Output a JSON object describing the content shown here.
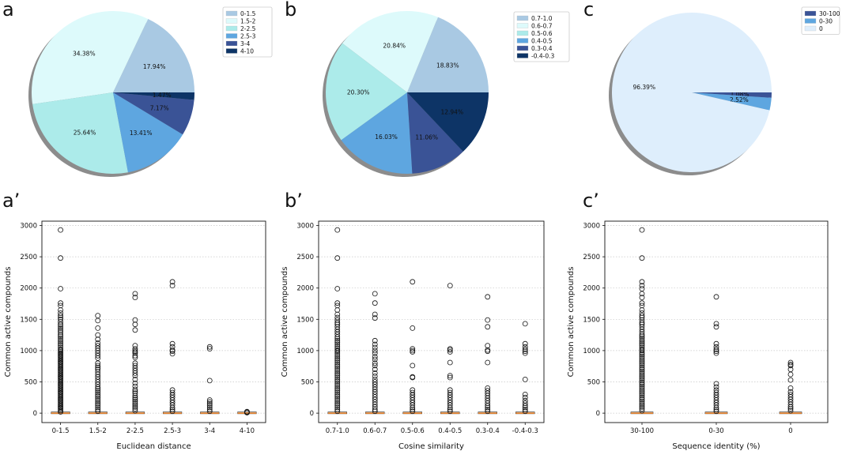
{
  "chart_data": [
    {
      "panel_label": "a",
      "type": "pie",
      "labels": [
        "0-1.5",
        "1.5-2",
        "2-2.5",
        "2.5-3",
        "3-4",
        "4-10"
      ],
      "values": [
        17.94,
        34.38,
        25.64,
        13.41,
        7.17,
        1.47
      ],
      "value_labels": [
        "17.94%",
        "34.38%",
        "25.64%",
        "13.41%",
        "7.17%",
        "1.47%"
      ],
      "colors": [
        "#a9c9e3",
        "#ddfafb",
        "#acebea",
        "#5ea6e0",
        "#3a5396",
        "#0d3466"
      ],
      "start_angle": 0,
      "direction": "counterclockwise",
      "shadow": true,
      "legend_position": "right"
    },
    {
      "panel_label": "b",
      "type": "pie",
      "labels": [
        "0.7-1.0",
        "0.6-0.7",
        "0.5-0.6",
        "0.4-0.5",
        "0.3-0.4",
        "-0.4-0.3"
      ],
      "values": [
        18.83,
        20.84,
        20.3,
        16.03,
        11.06,
        12.94
      ],
      "value_labels": [
        "18.83%",
        "20.84%",
        "20.30%",
        "16.03%",
        "11.06%",
        "12.94%"
      ],
      "colors": [
        "#a9c9e3",
        "#ddfafb",
        "#acebea",
        "#5ea6e0",
        "#3a5396",
        "#0d3466"
      ],
      "start_angle": 0,
      "direction": "counterclockwise",
      "shadow": true,
      "legend_position": "right"
    },
    {
      "panel_label": "c",
      "type": "pie",
      "labels": [
        "30-100",
        "0-30",
        "0"
      ],
      "legend_labels": [
        "30-100",
        "0-30",
        "0"
      ],
      "values": [
        1.08,
        2.52,
        96.39
      ],
      "value_labels": [
        "1.08%",
        "2.52%",
        "96.39%"
      ],
      "colors": [
        "#3a5396",
        "#5ea6e0",
        "#deeefc"
      ],
      "start_angle": 0,
      "direction": "clockwise",
      "shadow": true,
      "legend_position": "top-right"
    },
    {
      "panel_label": "a’",
      "type": "boxplot",
      "xlabel": "Euclidean distance",
      "ylabel": "Common active compounds",
      "categories": [
        "0-1.5",
        "1.5-2",
        "2-2.5",
        "2.5-3",
        "3-4",
        "4-10"
      ],
      "yticks": [
        0,
        500,
        1000,
        1500,
        2000,
        2500,
        3000
      ],
      "ylim": [
        -150,
        3070
      ],
      "grid": "y-dotted",
      "box_color": "#f28a30",
      "outliers": [
        [
          2930,
          2480,
          1990,
          1760,
          1720,
          1650,
          1600,
          1560,
          1530,
          1500,
          1460,
          1420,
          1390,
          1360,
          1330,
          1300,
          1260,
          1230,
          1200,
          1170,
          1140,
          1110,
          1080,
          1050,
          1020,
          1000,
          980,
          960,
          940,
          920,
          900,
          880,
          860,
          840,
          820,
          800,
          780,
          760,
          740,
          720,
          700,
          680,
          660,
          640,
          620,
          600,
          580,
          560,
          540,
          520,
          500,
          480,
          460,
          440,
          420,
          400,
          380,
          360,
          340,
          320,
          300,
          280,
          260,
          240,
          220,
          200,
          180,
          160,
          140,
          120,
          100,
          80,
          60,
          40,
          20
        ],
        [
          1560,
          1480,
          1360,
          1250,
          1180,
          1120,
          1080,
          1040,
          1000,
          960,
          920,
          880,
          800,
          760,
          730,
          700,
          660,
          620,
          580,
          540,
          500,
          460,
          420,
          390,
          360,
          330,
          300,
          270,
          240,
          210,
          180,
          150,
          120,
          90,
          60,
          30
        ],
        [
          1910,
          1850,
          1490,
          1420,
          1330,
          1080,
          1030,
          1000,
          980,
          960,
          920,
          890,
          800,
          760,
          720,
          680,
          640,
          600,
          540,
          480,
          430,
          380,
          350,
          320,
          280,
          250,
          220,
          190,
          160,
          130,
          100,
          70,
          40
        ],
        [
          2100,
          2040,
          1110,
          1060,
          1010,
          990,
          950,
          370,
          330,
          290,
          250,
          210,
          170,
          130,
          90,
          60,
          30
        ],
        [
          1060,
          1030,
          520,
          210,
          180,
          150,
          120,
          90,
          60,
          30
        ],
        [
          25,
          15,
          8
        ]
      ]
    },
    {
      "panel_label": "b’",
      "type": "boxplot",
      "xlabel": "Cosine similarity",
      "ylabel": "Common active compounds",
      "categories": [
        "0.7-1.0",
        "0.6-0.7",
        "0.5-0.6",
        "0.4-0.5",
        "0.3-0.4",
        "-0.4-0.3"
      ],
      "yticks": [
        0,
        500,
        1000,
        1500,
        2000,
        2500,
        3000
      ],
      "ylim": [
        -150,
        3070
      ],
      "grid": "y-dotted",
      "box_color": "#f28a30",
      "outliers": [
        [
          2930,
          2480,
          1990,
          1760,
          1720,
          1650,
          1580,
          1530,
          1490,
          1450,
          1420,
          1380,
          1340,
          1300,
          1260,
          1220,
          1190,
          1160,
          1130,
          1100,
          1070,
          1040,
          1010,
          990,
          960,
          930,
          900,
          870,
          840,
          810,
          780,
          750,
          720,
          690,
          660,
          630,
          600,
          570,
          540,
          510,
          480,
          450,
          420,
          390,
          360,
          330,
          300,
          270,
          240,
          210,
          180,
          150,
          120,
          90,
          60,
          30
        ],
        [
          1910,
          1760,
          1580,
          1520,
          1160,
          1100,
          1050,
          1000,
          960,
          900,
          860,
          800,
          760,
          700,
          640,
          590,
          540,
          500,
          460,
          420,
          380,
          340,
          300,
          260,
          220,
          180,
          140,
          100,
          60,
          30
        ],
        [
          2100,
          1360,
          1030,
          1000,
          980,
          760,
          580,
          570,
          370,
          330,
          290,
          250,
          210,
          170,
          130,
          90,
          60,
          30
        ],
        [
          2040,
          1030,
          1010,
          980,
          810,
          600,
          570,
          370,
          330,
          290,
          250,
          210,
          170,
          130,
          90,
          60,
          30
        ],
        [
          1860,
          1490,
          1380,
          1080,
          1010,
          990,
          810,
          400,
          360,
          320,
          280,
          240,
          200,
          160,
          120,
          90,
          60,
          30
        ],
        [
          1430,
          1110,
          1060,
          1020,
          990,
          960,
          540,
          300,
          250,
          200,
          160,
          120,
          90,
          60,
          30
        ]
      ]
    },
    {
      "panel_label": "c’",
      "type": "boxplot",
      "xlabel": "Sequence identity (%)",
      "ylabel": "Common active compounds",
      "categories": [
        "30-100",
        "0-30",
        "0"
      ],
      "yticks": [
        0,
        500,
        1000,
        1500,
        2000,
        2500,
        3000
      ],
      "ylim": [
        -150,
        3070
      ],
      "grid": "y-dotted",
      "box_color": "#f28a30",
      "outliers": [
        [
          2930,
          2480,
          2100,
          2040,
          1990,
          1910,
          1850,
          1760,
          1720,
          1650,
          1600,
          1560,
          1530,
          1490,
          1450,
          1420,
          1380,
          1340,
          1300,
          1260,
          1230,
          1200,
          1170,
          1140,
          1110,
          1080,
          1050,
          1020,
          1000,
          970,
          940,
          910,
          880,
          850,
          820,
          790,
          760,
          730,
          700,
          670,
          640,
          610,
          580,
          550,
          520,
          490,
          460,
          430,
          400,
          370,
          340,
          310,
          280,
          250,
          220,
          190,
          160,
          130,
          100,
          70,
          40
        ],
        [
          1860,
          1430,
          1380,
          1110,
          1060,
          1020,
          990,
          960,
          470,
          420,
          370,
          330,
          290,
          250,
          210,
          170,
          130,
          90,
          60,
          30
        ],
        [
          810,
          780,
          760,
          700,
          620,
          530,
          400,
          340,
          300,
          260,
          220,
          180,
          140,
          100,
          70,
          40
        ]
      ]
    }
  ]
}
